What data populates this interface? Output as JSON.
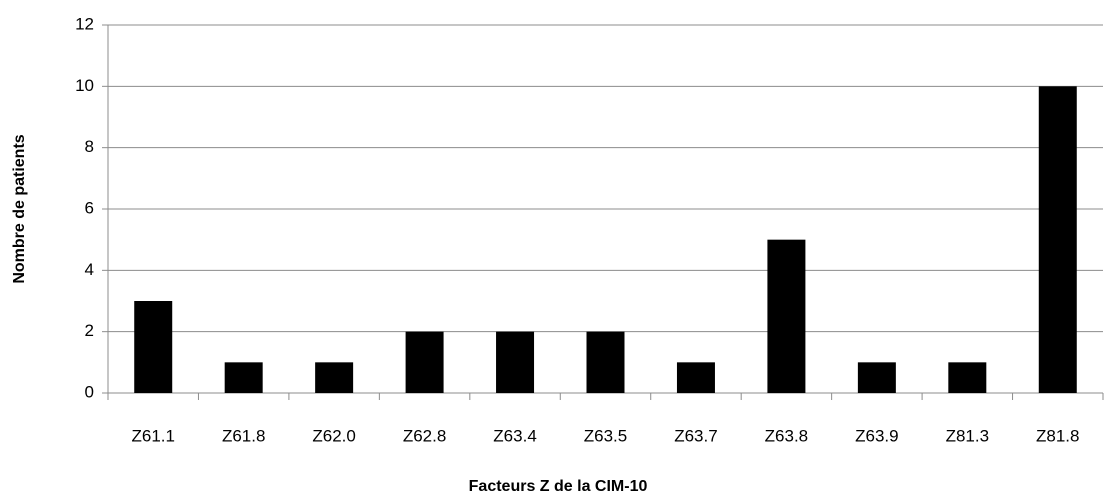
{
  "chart_data": {
    "type": "bar",
    "x_label": "Facteurs Z de la CIM-10",
    "y_label": "Nombre de patients",
    "categories": [
      "Z61.1",
      "Z61.8",
      "Z62.0",
      "Z62.8",
      "Z63.4",
      "Z63.5",
      "Z63.7",
      "Z63.8",
      "Z63.9",
      "Z81.3",
      "Z81.8"
    ],
    "values": [
      3,
      1,
      1,
      2,
      2,
      2,
      1,
      5,
      1,
      1,
      10
    ],
    "color": "#000000",
    "ylim": [
      0,
      12
    ],
    "yticks": [
      0,
      2,
      4,
      6,
      8,
      10,
      12
    ],
    "grid": true
  }
}
